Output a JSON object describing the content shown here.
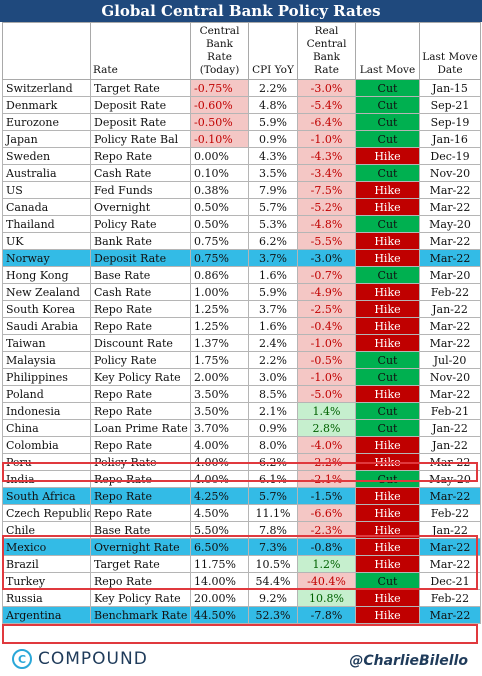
{
  "title": "Global Central Bank Policy Rates",
  "headers": {
    "country": "",
    "rate": "Rate",
    "central_bank_rate": "Central Bank Rate (Today)",
    "cpi": "CPI YoY",
    "real_rate": "Real Central Bank Rate",
    "last_move": "Last Move",
    "last_move_date": "Last Move Date"
  },
  "rows": [
    [
      "Switzerland",
      "Target Rate",
      "-0.75%",
      "2.2%",
      "-3.0%",
      "Cut",
      "Jan-15"
    ],
    [
      "Denmark",
      "Deposit Rate",
      "-0.60%",
      "4.8%",
      "-5.4%",
      "Cut",
      "Sep-21"
    ],
    [
      "Eurozone",
      "Deposit Rate",
      "-0.50%",
      "5.9%",
      "-6.4%",
      "Cut",
      "Sep-19"
    ],
    [
      "Japan",
      "Policy Rate Bal",
      "-0.10%",
      "0.9%",
      "-1.0%",
      "Cut",
      "Jan-16"
    ],
    [
      "Sweden",
      "Repo Rate",
      "0.00%",
      "4.3%",
      "-4.3%",
      "Hike",
      "Dec-19"
    ],
    [
      "Australia",
      "Cash Rate",
      "0.10%",
      "3.5%",
      "-3.4%",
      "Cut",
      "Nov-20"
    ],
    [
      "US",
      "Fed Funds",
      "0.38%",
      "7.9%",
      "-7.5%",
      "Hike",
      "Mar-22"
    ],
    [
      "Canada",
      "Overnight",
      "0.50%",
      "5.7%",
      "-5.2%",
      "Hike",
      "Mar-22"
    ],
    [
      "Thailand",
      "Policy Rate",
      "0.50%",
      "5.3%",
      "-4.8%",
      "Cut",
      "May-20"
    ],
    [
      "UK",
      "Bank Rate",
      "0.75%",
      "6.2%",
      "-5.5%",
      "Hike",
      "Mar-22"
    ],
    [
      "Norway",
      "Deposit Rate",
      "0.75%",
      "3.7%",
      "-3.0%",
      "Hike",
      "Mar-22"
    ],
    [
      "Hong Kong",
      "Base Rate",
      "0.86%",
      "1.6%",
      "-0.7%",
      "Cut",
      "Mar-20"
    ],
    [
      "New Zealand",
      "Cash Rate",
      "1.00%",
      "5.9%",
      "-4.9%",
      "Hike",
      "Feb-22"
    ],
    [
      "South Korea",
      "Repo Rate",
      "1.25%",
      "3.7%",
      "-2.5%",
      "Hike",
      "Jan-22"
    ],
    [
      "Saudi Arabia",
      "Repo Rate",
      "1.25%",
      "1.6%",
      "-0.4%",
      "Hike",
      "Mar-22"
    ],
    [
      "Taiwan",
      "Discount Rate",
      "1.37%",
      "2.4%",
      "-1.0%",
      "Hike",
      "Mar-22"
    ],
    [
      "Malaysia",
      "Policy Rate",
      "1.75%",
      "2.2%",
      "-0.5%",
      "Cut",
      "Jul-20"
    ],
    [
      "Philippines",
      "Key Policy Rate",
      "2.00%",
      "3.0%",
      "-1.0%",
      "Cut",
      "Nov-20"
    ],
    [
      "Poland",
      "Repo Rate",
      "3.50%",
      "8.5%",
      "-5.0%",
      "Hike",
      "Mar-22"
    ],
    [
      "Indonesia",
      "Repo Rate",
      "3.50%",
      "2.1%",
      "1.4%",
      "Cut",
      "Feb-21"
    ],
    [
      "China",
      "Loan Prime Rate",
      "3.70%",
      "0.9%",
      "2.8%",
      "Cut",
      "Jan-22"
    ],
    [
      "Colombia",
      "Repo Rate",
      "4.00%",
      "8.0%",
      "-4.0%",
      "Hike",
      "Jan-22"
    ],
    [
      "Peru",
      "Policy Rate",
      "4.00%",
      "6.2%",
      "-2.2%",
      "Hike",
      "Mar-22"
    ],
    [
      "India",
      "Repo Rate",
      "4.00%",
      "6.1%",
      "-2.1%",
      "Cut",
      "May-20"
    ],
    [
      "South Africa",
      "Repo Rate",
      "4.25%",
      "5.7%",
      "-1.5%",
      "Hike",
      "Mar-22"
    ],
    [
      "Czech Republic",
      "Repo Rate",
      "4.50%",
      "11.1%",
      "-6.6%",
      "Hike",
      "Feb-22"
    ],
    [
      "Chile",
      "Base Rate",
      "5.50%",
      "7.8%",
      "-2.3%",
      "Hike",
      "Jan-22"
    ],
    [
      "Mexico",
      "Overnight Rate",
      "6.50%",
      "7.3%",
      "-0.8%",
      "Hike",
      "Mar-22"
    ],
    [
      "Brazil",
      "Target Rate",
      "11.75%",
      "10.5%",
      "1.2%",
      "Hike",
      "Mar-22"
    ],
    [
      "Turkey",
      "Repo Rate",
      "14.00%",
      "54.4%",
      "-40.4%",
      "Cut",
      "Dec-21"
    ],
    [
      "Russia",
      "Key Policy Rate",
      "20.00%",
      "9.2%",
      "10.8%",
      "Hike",
      "Feb-22"
    ],
    [
      "Argentina",
      "Benchmark Rate",
      "44.50%",
      "52.3%",
      "-7.8%",
      "Hike",
      "Mar-22"
    ]
  ],
  "highlighted_rows": [
    "Norway",
    "South Africa",
    "Mexico",
    "Argentina"
  ],
  "colors": {
    "title_bg": "#1f497d",
    "highlight_row": "#33bbe6",
    "hike": "#c00000",
    "cut": "#00b050",
    "negative_bg": "#f4c7c5",
    "positive_bg": "#c6efce",
    "box_border": "#e0393e"
  },
  "footer": {
    "logo_icon": "c-circle-icon",
    "logo_text": "COMPOUND",
    "handle": "@CharlieBilello"
  }
}
